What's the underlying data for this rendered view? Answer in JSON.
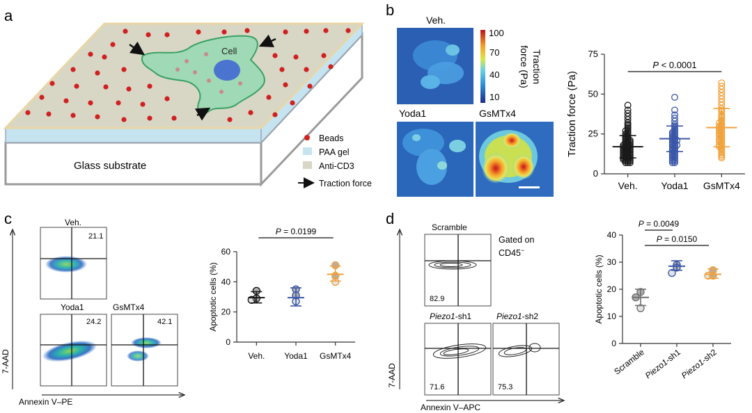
{
  "panels": {
    "a": "a",
    "b": "b",
    "c": "c",
    "d": "d"
  },
  "colors": {
    "veh": "#1a1a1a",
    "yoda": "#3a56a8",
    "gsm": "#f0a23c",
    "scramble": "#707070",
    "bead": "#d02020",
    "cell": "#9fd9b5",
    "gel": "#c6e4ef",
    "anti": "#d8d7c6"
  },
  "panel_a": {
    "cell_label": "Cell",
    "glass_label": "Glass substrate",
    "legend": {
      "beads": "Beads",
      "paa": "PAA gel",
      "anti": "Anti-CD3",
      "force": "Traction force"
    }
  },
  "panel_b": {
    "maps": {
      "veh": "Veh.",
      "yoda": "Yoda1",
      "gsm": "GsMTx4"
    },
    "colorbar_ticks": [
      "100",
      "70",
      "40",
      "10"
    ],
    "colorbar_title": [
      "Traction",
      "force (Pa)"
    ]
  },
  "panel_c": {
    "flow_titles": {
      "veh": "Veh.",
      "yoda": "Yoda1",
      "gsm": "GsMTx4"
    },
    "flow_values": {
      "veh": "21.1",
      "yoda": "24.2",
      "gsm": "42.1"
    },
    "y_axis_label": "7-AAD",
    "x_axis_label": "Annexin V–PE"
  },
  "panel_d": {
    "flow_titles": {
      "scramble": "Scramble",
      "sh1_italic": "Piezo1",
      "sh1_rest": "-sh1",
      "sh2_italic": "Piezo1",
      "sh2_rest": "-sh2"
    },
    "gated": [
      "Gated on",
      "CD45"
    ],
    "gated_sup": "−",
    "flow_values": {
      "scramble": "82.9",
      "sh1": "71.6",
      "sh2": "75.3"
    },
    "y_axis_label": "7-AAD",
    "x_axis_label": "Annexin V–APC"
  },
  "chart_data": [
    {
      "id": "b-traction",
      "type": "scatter",
      "title": "",
      "ylabel": "Traction force (Pa)",
      "categories": [
        "Veh.",
        "Yoda1",
        "GsMTx4"
      ],
      "ylim": [
        0,
        75
      ],
      "yticks": [
        0,
        25,
        50,
        75
      ],
      "stats": [
        {
          "group": "Veh.",
          "mean": 17,
          "sd_low": 10,
          "sd_high": 24
        },
        {
          "group": "Yoda1",
          "mean": 22,
          "sd_low": 14,
          "sd_high": 30
        },
        {
          "group": "GsMTx4",
          "mean": 29,
          "sd_low": 17,
          "sd_high": 41
        }
      ],
      "series": [
        {
          "name": "Veh.",
          "values": [
            43,
            40,
            38,
            36,
            34,
            32,
            31,
            30,
            29,
            28,
            27,
            27,
            26,
            25,
            25,
            24,
            24,
            23,
            23,
            22,
            22,
            21,
            21,
            21,
            20,
            20,
            20,
            19,
            19,
            19,
            18,
            18,
            18,
            18,
            17,
            17,
            17,
            17,
            16,
            16,
            16,
            16,
            15,
            15,
            15,
            15,
            14,
            14,
            14,
            14,
            13,
            13,
            13,
            13,
            12,
            12,
            12,
            12,
            11,
            11,
            11,
            11,
            10,
            10,
            10,
            10,
            9,
            9,
            9,
            9,
            8,
            8,
            8,
            7,
            7,
            7
          ]
        },
        {
          "name": "Yoda1",
          "values": [
            48,
            40,
            37,
            35,
            33,
            31,
            30,
            29,
            28,
            27,
            26,
            26,
            25,
            25,
            24,
            24,
            23,
            23,
            22,
            22,
            21,
            21,
            21,
            20,
            20,
            19,
            19,
            18,
            18,
            18,
            17,
            17,
            16,
            16,
            15,
            15,
            14,
            14,
            13,
            13,
            12,
            12,
            11,
            11,
            10,
            10,
            9,
            9,
            8,
            8,
            7,
            7
          ]
        },
        {
          "name": "GsMTx4",
          "values": [
            57,
            55,
            53,
            51,
            49,
            47,
            45,
            43,
            41,
            40,
            39,
            37,
            36,
            35,
            34,
            33,
            32,
            32,
            31,
            30,
            30,
            29,
            29,
            28,
            28,
            27,
            27,
            26,
            26,
            25,
            25,
            24,
            24,
            23,
            22,
            22,
            21,
            21,
            20,
            20,
            19,
            18,
            18,
            17,
            17,
            16,
            15,
            14,
            13,
            12,
            11,
            10
          ]
        }
      ],
      "annotation": {
        "text_prefix": "P",
        "text_rest": " < 0.0001",
        "from": "Veh.",
        "to": "GsMTx4"
      }
    },
    {
      "id": "c-apoptosis",
      "type": "scatter",
      "title": "",
      "ylabel": "Apoptotic cells (%)",
      "categories": [
        "Veh.",
        "Yoda1",
        "GsMTx4"
      ],
      "ylim": [
        0,
        60
      ],
      "yticks": [
        0,
        20,
        40,
        60
      ],
      "stats": [
        {
          "group": "Veh.",
          "mean": 29.5,
          "sd_low": 26,
          "sd_high": 33.5
        },
        {
          "group": "Yoda1",
          "mean": 29.5,
          "sd_low": 24,
          "sd_high": 36
        },
        {
          "group": "GsMTx4",
          "mean": 45,
          "sd_low": 40.5,
          "sd_high": 50.5
        }
      ],
      "series": [
        {
          "name": "Veh.",
          "values": [
            34,
            29,
            28
          ]
        },
        {
          "name": "Yoda1",
          "values": [
            35,
            31,
            27
          ]
        },
        {
          "name": "GsMTx4",
          "values": [
            51,
            44,
            40
          ]
        }
      ],
      "annotation": {
        "text_prefix": "P",
        "text_rest": " = 0.0199",
        "from": "Veh.",
        "to": "GsMTx4"
      }
    },
    {
      "id": "d-apoptosis",
      "type": "scatter",
      "title": "",
      "ylabel": "Apoptotic cells (%)",
      "categories": [
        "Scramble",
        "Piezo1-sh1",
        "Piezo1-sh2"
      ],
      "ylim": [
        0,
        40
      ],
      "yticks": [
        0,
        10,
        20,
        30,
        40
      ],
      "stats": [
        {
          "group": "Scramble",
          "mean": 17,
          "sd_low": 14,
          "sd_high": 20
        },
        {
          "group": "Piezo1-sh1",
          "mean": 28.5,
          "sd_low": 27,
          "sd_high": 30.5
        },
        {
          "group": "Piezo1-sh2",
          "mean": 25.5,
          "sd_low": 24,
          "sd_high": 27.5
        }
      ],
      "series": [
        {
          "name": "Scramble",
          "values": [
            19,
            17,
            13
          ]
        },
        {
          "name": "Piezo1-sh1",
          "values": [
            29,
            28,
            26
          ]
        },
        {
          "name": "Piezo1-sh2",
          "values": [
            27,
            25,
            25
          ]
        }
      ],
      "annotations": [
        {
          "text_prefix": "P",
          "text_rest": " = 0.0049",
          "from": "Scramble",
          "to": "Piezo1-sh1"
        },
        {
          "text_prefix": "P",
          "text_rest": " = 0.0150",
          "from": "Scramble",
          "to": "Piezo1-sh2"
        }
      ]
    }
  ]
}
